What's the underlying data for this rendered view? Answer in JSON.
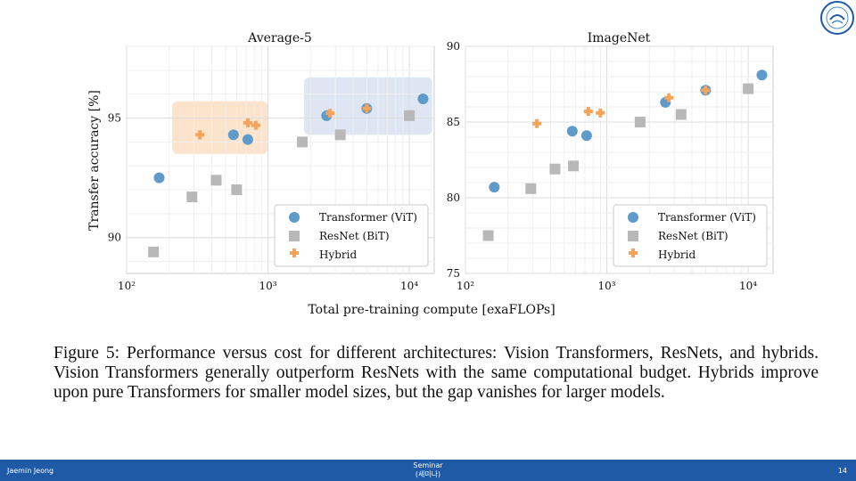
{
  "chart_data": [
    {
      "type": "scatter",
      "title": "Average-5",
      "ylabel": "Transfer accuracy [%]",
      "xscale": "log",
      "xlim": [
        100,
        15000
      ],
      "ylim": [
        88.5,
        98.0
      ],
      "xticks": [
        100,
        1000,
        10000
      ],
      "xtick_labels": [
        "10²",
        "10³",
        "10⁴"
      ],
      "yticks": [
        90,
        95
      ],
      "ytick_labels": [
        "90",
        "95"
      ],
      "highlight_regions": [
        {
          "color": "#fbe3cc",
          "x": [
            210,
            1000
          ],
          "y": [
            93.5,
            95.7
          ]
        },
        {
          "color": "#dfe6f3",
          "x": [
            1800,
            14500
          ],
          "y": [
            94.3,
            96.7
          ]
        }
      ],
      "series": [
        {
          "name": "Transformer (ViT)",
          "marker": "circle",
          "color": "#5f9bc9",
          "points": [
            [
              170,
              92.5
            ],
            [
              570,
              94.3
            ],
            [
              720,
              94.1
            ],
            [
              2600,
              95.1
            ],
            [
              5000,
              95.4
            ],
            [
              12500,
              95.8
            ]
          ]
        },
        {
          "name": "ResNet (BiT)",
          "marker": "square",
          "color": "#b8b8b8",
          "points": [
            [
              155,
              89.4
            ],
            [
              290,
              91.7
            ],
            [
              430,
              92.4
            ],
            [
              600,
              92.0
            ],
            [
              1750,
              94.0
            ],
            [
              3250,
              94.3
            ],
            [
              10000,
              95.1
            ]
          ]
        },
        {
          "name": "Hybrid",
          "marker": "plus",
          "color": "#f3a35a",
          "points": [
            [
              330,
              94.3
            ],
            [
              720,
              94.8
            ],
            [
              820,
              94.7
            ],
            [
              2750,
              95.2
            ],
            [
              5000,
              95.4
            ]
          ]
        }
      ],
      "legend": "lower right"
    },
    {
      "type": "scatter",
      "title": "ImageNet",
      "xscale": "log",
      "xlim": [
        100,
        15000
      ],
      "ylim": [
        75,
        90
      ],
      "xticks": [
        100,
        1000,
        10000
      ],
      "xtick_labels": [
        "10²",
        "10³",
        "10⁴"
      ],
      "yticks": [
        75,
        80,
        85,
        90
      ],
      "ytick_labels": [
        "75",
        "80",
        "85",
        "90"
      ],
      "series": [
        {
          "name": "Transformer (ViT)",
          "marker": "circle",
          "color": "#5f9bc9",
          "points": [
            [
              160,
              80.7
            ],
            [
              570,
              84.4
            ],
            [
              720,
              84.1
            ],
            [
              2600,
              86.3
            ],
            [
              5000,
              87.1
            ],
            [
              12500,
              88.1
            ]
          ]
        },
        {
          "name": "ResNet (BiT)",
          "marker": "square",
          "color": "#b8b8b8",
          "points": [
            [
              145,
              77.5
            ],
            [
              290,
              80.6
            ],
            [
              430,
              81.9
            ],
            [
              580,
              82.1
            ],
            [
              1720,
              85.0
            ],
            [
              3350,
              85.5
            ],
            [
              10000,
              87.2
            ]
          ]
        },
        {
          "name": "Hybrid",
          "marker": "plus",
          "color": "#f3a35a",
          "points": [
            [
              320,
              84.9
            ],
            [
              740,
              85.7
            ],
            [
              900,
              85.6
            ],
            [
              2750,
              86.6
            ],
            [
              5000,
              87.1
            ]
          ]
        }
      ],
      "legend": "lower right"
    }
  ],
  "shared_xlabel": "Total pre-training compute [exaFLOPs]",
  "caption": "Figure 5: Performance versus cost for different architectures: Vision Transformers, ResNets, and hybrids. Vision Transformers generally outperform ResNets with the same computational budget. Hybrids improve upon pure Transformers for smaller model sizes, but the gap vanishes for larger models.",
  "footer": {
    "author": "Jaemin Jeong",
    "center_line1": "Seminar",
    "center_line2": "(세미나)",
    "page": "14"
  },
  "logo_icon": "university-seal-icon"
}
